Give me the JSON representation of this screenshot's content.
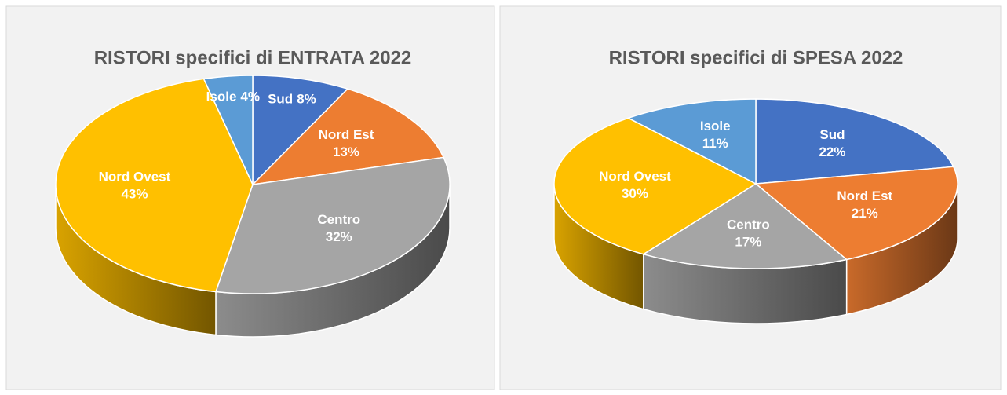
{
  "chart_data": [
    {
      "type": "pie",
      "title": "RISTORI specifici di ENTRATA 2022",
      "categories": [
        "Sud",
        "Nord Est",
        "Centro",
        "Nord Ovest",
        "Isole"
      ],
      "values": [
        8,
        13,
        32,
        43,
        4
      ],
      "value_labels": [
        "8%",
        "13%",
        "32%",
        "43%",
        "4%"
      ],
      "colors": [
        "#4472c4",
        "#ed7d31",
        "#a5a5a5",
        "#ffc000",
        "#5b9bd5"
      ]
    },
    {
      "type": "pie",
      "title": "RISTORI specifici di SPESA 2022",
      "categories": [
        "Sud",
        "Nord Est",
        "Centro",
        "Nord Ovest",
        "Isole"
      ],
      "values": [
        22,
        21,
        17,
        30,
        11
      ],
      "value_labels": [
        "22%",
        "21%",
        "17%",
        "30%",
        "11%"
      ],
      "colors": [
        "#4472c4",
        "#ed7d31",
        "#a5a5a5",
        "#ffc000",
        "#5b9bd5"
      ]
    }
  ]
}
